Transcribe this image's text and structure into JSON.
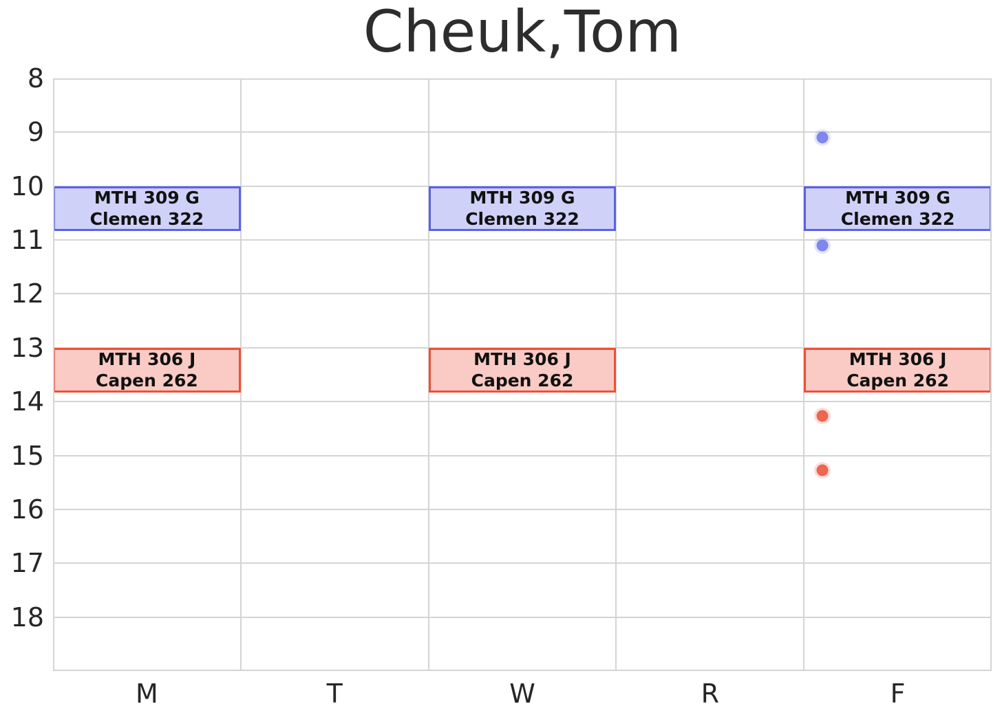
{
  "title": "Cheuk,Tom",
  "chart_data": {
    "type": "schedule",
    "title": "Cheuk,Tom",
    "x_axis": {
      "label": "",
      "categories": [
        "M",
        "T",
        "W",
        "R",
        "F"
      ]
    },
    "y_axis": {
      "label": "",
      "ticks": [
        "8",
        "9",
        "10",
        "11",
        "12",
        "13",
        "14",
        "15",
        "16",
        "17",
        "18"
      ],
      "range": [
        8,
        19
      ],
      "inverted": true,
      "unit": "hour-of-day"
    },
    "grid": true,
    "legend": "none",
    "colors": {
      "grid": "#d4d4d4",
      "tick_text": "#262626",
      "title_text": "#2d2d2d",
      "event_text": "#111111",
      "blue_fill": "#cfd1f8",
      "blue_border": "#5a61e6",
      "red_fill": "#f9cbc4",
      "red_border": "#f04f37",
      "blue_dot": "#7d87ee",
      "red_dot": "#ec6650"
    },
    "events": [
      {
        "course": "MTH 309 G",
        "room": "Clemen 322",
        "days": [
          "M",
          "W",
          "F"
        ],
        "start_hour": 10.0,
        "end_hour": 10.83,
        "fill": "#cfd1f8",
        "border": "#5a61e6"
      },
      {
        "course": "MTH 306 J",
        "room": "Capen 262",
        "days": [
          "M",
          "W",
          "F"
        ],
        "start_hour": 13.0,
        "end_hour": 13.83,
        "fill": "#f9cbc4",
        "border": "#f04f37"
      }
    ],
    "points": [
      {
        "day": "F",
        "hour": 9.1,
        "color": "#7d87ee"
      },
      {
        "day": "F",
        "hour": 11.1,
        "color": "#7d87ee"
      },
      {
        "day": "F",
        "hour": 14.27,
        "color": "#ec6650"
      },
      {
        "day": "F",
        "hour": 15.27,
        "color": "#ec6650"
      }
    ],
    "point_x_fraction": 0.1
  }
}
